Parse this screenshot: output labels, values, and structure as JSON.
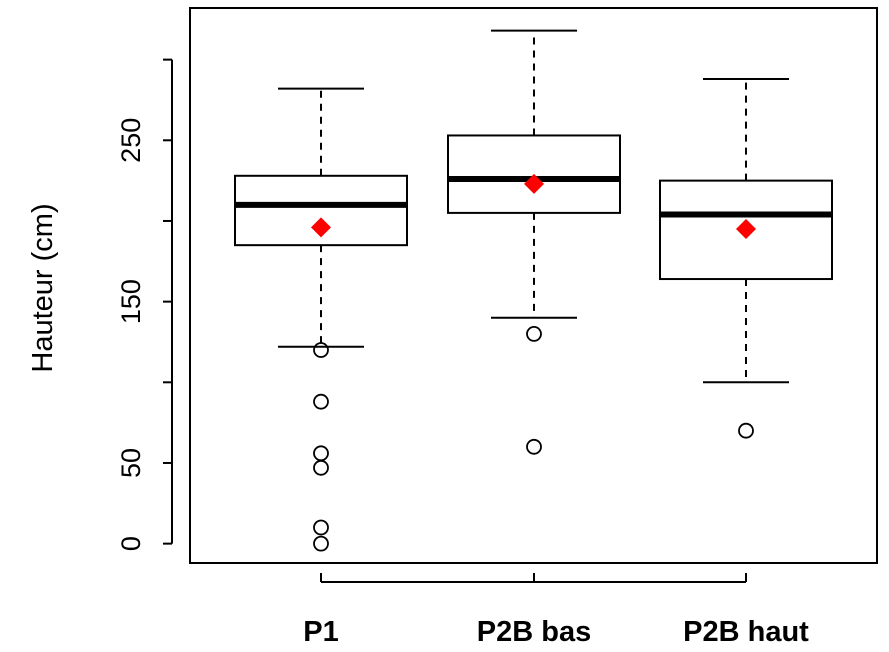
{
  "chart_data": {
    "type": "boxplot",
    "ylabel": "Hauteur (cm)",
    "xlabel": "",
    "ylim": [
      -12,
      332
    ],
    "yticks": [
      0,
      50,
      100,
      150,
      200,
      250,
      300
    ],
    "yticklabels": [
      "0",
      "50",
      "",
      "150",
      "",
      "250",
      ""
    ],
    "categories": [
      "P1",
      "P2B bas",
      "P2B haut"
    ],
    "boxes": [
      {
        "name": "P1",
        "whisker_low": 122,
        "q1": 185,
        "median": 210,
        "q3": 228,
        "whisker_high": 282,
        "mean": 196,
        "outliers": [
          120,
          88,
          56,
          47,
          10,
          0
        ]
      },
      {
        "name": "P2B bas",
        "whisker_low": 140,
        "q1": 205,
        "median": 226,
        "q3": 253,
        "whisker_high": 318,
        "mean": 223,
        "outliers": [
          130,
          60
        ]
      },
      {
        "name": "P2B haut",
        "whisker_low": 100,
        "q1": 164,
        "median": 204,
        "q3": 225,
        "whisker_high": 288,
        "mean": 195,
        "outliers": [
          70
        ]
      }
    ],
    "mean_marker_color": "#ff0000",
    "median_color": "#000000",
    "grid": false,
    "legend": "none"
  }
}
